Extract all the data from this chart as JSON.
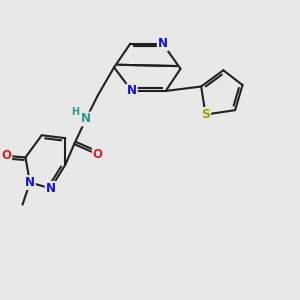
{
  "background_color": "#e8e8e8",
  "bond_color": "#202020",
  "bond_width": 1.5,
  "atom_colors": {
    "N_blue": "#1010dd",
    "N_teal": "#2a9a8c",
    "O_red": "#dd2020",
    "S_yellow": "#a0a000",
    "H_teal": "#2a9a8c"
  },
  "font_size": 8.5,
  "figsize": [
    3.0,
    3.0
  ],
  "dpi": 100,
  "xlim": [
    0,
    10
  ],
  "ylim": [
    0,
    10
  ]
}
